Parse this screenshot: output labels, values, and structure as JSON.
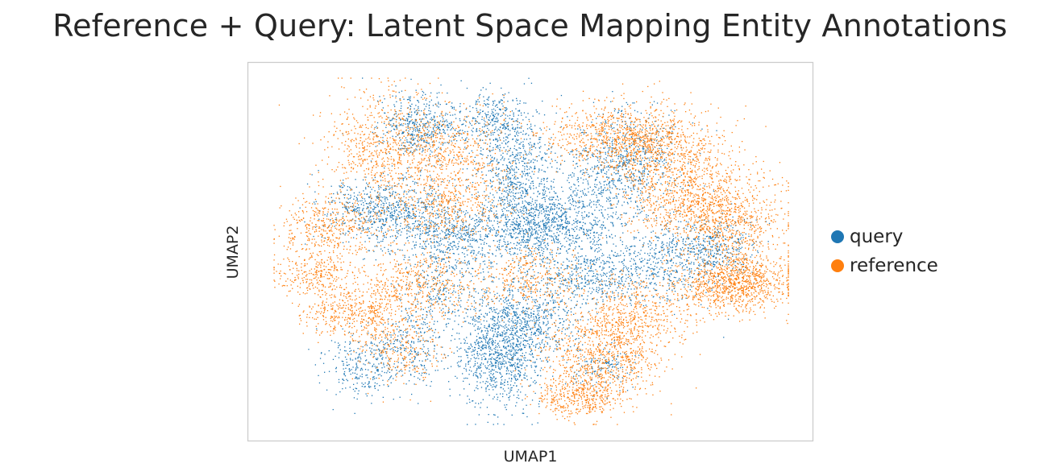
{
  "chart_data": {
    "type": "scatter",
    "title": "Reference + Query: Latent Space Mapping Entity Annotations",
    "xlabel": "UMAP1",
    "ylabel": "UMAP2",
    "xlim": [
      0,
      100
    ],
    "ylim": [
      0,
      100
    ],
    "grid": false,
    "legend_placement": "right",
    "series": [
      {
        "name": "query",
        "color": "#1f77b4",
        "clusters": [
          {
            "x": 29,
            "y": 86,
            "sx": 4,
            "sy": 5,
            "n": 500
          },
          {
            "x": 22,
            "y": 62,
            "sx": 6,
            "sy": 5,
            "n": 700
          },
          {
            "x": 35,
            "y": 54,
            "sx": 6,
            "sy": 5,
            "n": 600
          },
          {
            "x": 47,
            "y": 72,
            "sx": 4,
            "sy": 9,
            "n": 700
          },
          {
            "x": 43,
            "y": 88,
            "sx": 3,
            "sy": 4,
            "n": 250
          },
          {
            "x": 50,
            "y": 57,
            "sx": 4,
            "sy": 5,
            "n": 400
          },
          {
            "x": 57,
            "y": 58,
            "sx": 7,
            "sy": 5,
            "n": 600
          },
          {
            "x": 63,
            "y": 43,
            "sx": 7,
            "sy": 4,
            "n": 550
          },
          {
            "x": 44,
            "y": 21,
            "sx": 4,
            "sy": 8,
            "n": 1000
          },
          {
            "x": 50,
            "y": 30,
            "sx": 5,
            "sy": 6,
            "n": 500
          },
          {
            "x": 18,
            "y": 17,
            "sx": 4,
            "sy": 5,
            "n": 300
          },
          {
            "x": 27,
            "y": 24,
            "sx": 4,
            "sy": 6,
            "n": 250
          },
          {
            "x": 66,
            "y": 71,
            "sx": 6,
            "sy": 5,
            "n": 450
          },
          {
            "x": 69,
            "y": 81,
            "sx": 5,
            "sy": 6,
            "n": 350
          },
          {
            "x": 78,
            "y": 48,
            "sx": 6,
            "sy": 6,
            "n": 450
          },
          {
            "x": 86,
            "y": 51,
            "sx": 4,
            "sy": 4,
            "n": 250
          },
          {
            "x": 64,
            "y": 17,
            "sx": 3,
            "sy": 4,
            "n": 150
          },
          {
            "x": 32,
            "y": 38,
            "sx": 4,
            "sy": 5,
            "n": 200
          }
        ]
      },
      {
        "name": "reference",
        "color": "#ff7f0e",
        "clusters": [
          {
            "x": 22,
            "y": 80,
            "sx": 6,
            "sy": 8,
            "n": 700
          },
          {
            "x": 35,
            "y": 78,
            "sx": 6,
            "sy": 7,
            "n": 500
          },
          {
            "x": 11,
            "y": 56,
            "sx": 5,
            "sy": 5,
            "n": 450
          },
          {
            "x": 8,
            "y": 43,
            "sx": 4,
            "sy": 3,
            "n": 250
          },
          {
            "x": 15,
            "y": 32,
            "sx": 5,
            "sy": 4,
            "n": 400
          },
          {
            "x": 28,
            "y": 40,
            "sx": 6,
            "sy": 5,
            "n": 500
          },
          {
            "x": 33,
            "y": 62,
            "sx": 6,
            "sy": 5,
            "n": 400
          },
          {
            "x": 66,
            "y": 83,
            "sx": 7,
            "sy": 5,
            "n": 700
          },
          {
            "x": 76,
            "y": 79,
            "sx": 6,
            "sy": 6,
            "n": 600
          },
          {
            "x": 82,
            "y": 65,
            "sx": 7,
            "sy": 6,
            "n": 800
          },
          {
            "x": 88,
            "y": 58,
            "sx": 6,
            "sy": 5,
            "n": 500
          },
          {
            "x": 88,
            "y": 40,
            "sx": 6,
            "sy": 4,
            "n": 700
          },
          {
            "x": 92,
            "y": 43,
            "sx": 5,
            "sy": 4,
            "n": 400
          },
          {
            "x": 64,
            "y": 20,
            "sx": 6,
            "sy": 7,
            "n": 900
          },
          {
            "x": 59,
            "y": 8,
            "sx": 4,
            "sy": 3,
            "n": 350
          },
          {
            "x": 70,
            "y": 32,
            "sx": 5,
            "sy": 5,
            "n": 400
          },
          {
            "x": 50,
            "y": 42,
            "sx": 5,
            "sy": 5,
            "n": 350
          },
          {
            "x": 25,
            "y": 22,
            "sx": 4,
            "sy": 5,
            "n": 250
          }
        ]
      }
    ]
  }
}
